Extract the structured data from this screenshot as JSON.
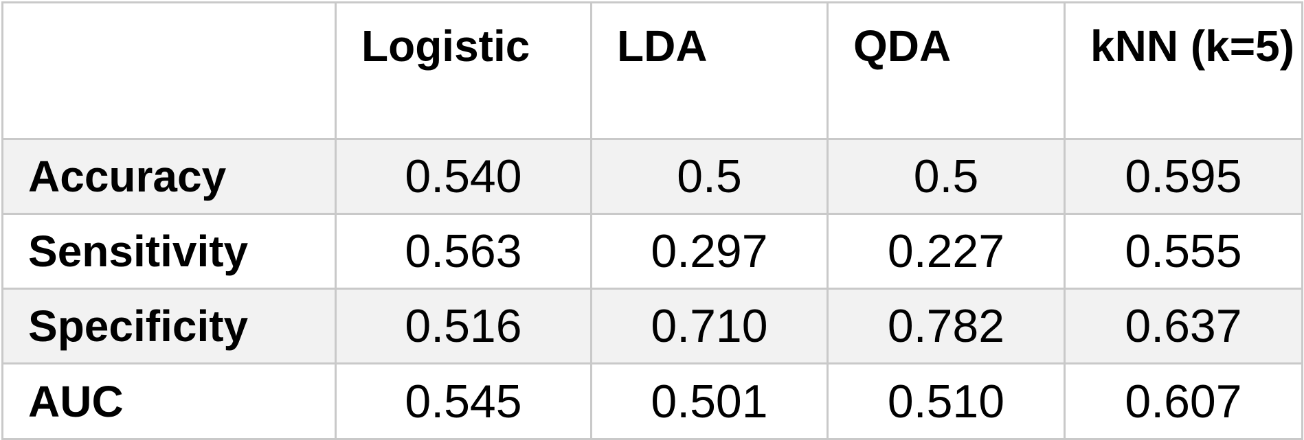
{
  "table": {
    "corner": "",
    "columns": [
      "Logistic",
      "LDA",
      "QDA",
      "kNN (k=5)"
    ],
    "rows": [
      {
        "label": "Accuracy",
        "values": [
          "0.540",
          "0.5",
          "0.5",
          "0.595"
        ]
      },
      {
        "label": "Sensitivity",
        "values": [
          "0.563",
          "0.297",
          "0.227",
          "0.555"
        ]
      },
      {
        "label": "Specificity",
        "values": [
          "0.516",
          "0.710",
          "0.782",
          "0.637"
        ]
      },
      {
        "label": "AUC",
        "values": [
          "0.545",
          "0.501",
          "0.510",
          "0.607"
        ]
      }
    ],
    "colors": {
      "border": "#c9c9c9",
      "shaded_row": "#f2f2f2",
      "background": "#ffffff",
      "text": "#000000"
    }
  }
}
